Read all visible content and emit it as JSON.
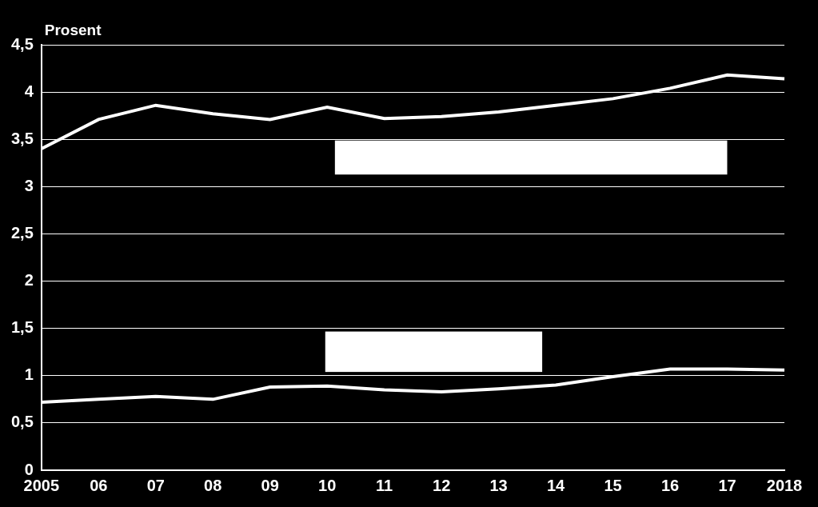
{
  "chart_data": {
    "type": "line",
    "y_label": "Prosent",
    "categories": [
      "2005",
      "06",
      "07",
      "08",
      "09",
      "10",
      "11",
      "12",
      "13",
      "14",
      "15",
      "16",
      "17",
      "2018"
    ],
    "series": [
      {
        "color": "#ffffff",
        "values": [
          3.4,
          3.71,
          3.86,
          3.77,
          3.71,
          3.84,
          3.72,
          3.74,
          3.79,
          3.86,
          3.93,
          4.04,
          4.18,
          4.14
        ]
      },
      {
        "color": "#ffffff",
        "values": [
          0.72,
          0.75,
          0.78,
          0.75,
          0.88,
          0.89,
          0.85,
          0.83,
          0.86,
          0.9,
          0.99,
          1.07,
          1.07,
          1.06
        ]
      }
    ],
    "ylim": [
      0,
      4.5
    ],
    "yticks": [
      0,
      {
        "value": 0.5,
        "label": "0,5"
      },
      1,
      {
        "value": 1.5,
        "label": "1,5"
      },
      2,
      {
        "value": 2.5,
        "label": "2,5"
      },
      3,
      {
        "value": 3.5,
        "label": "3,5"
      },
      4,
      {
        "value": 4.5,
        "label": "4,5"
      }
    ],
    "grid": true
  }
}
